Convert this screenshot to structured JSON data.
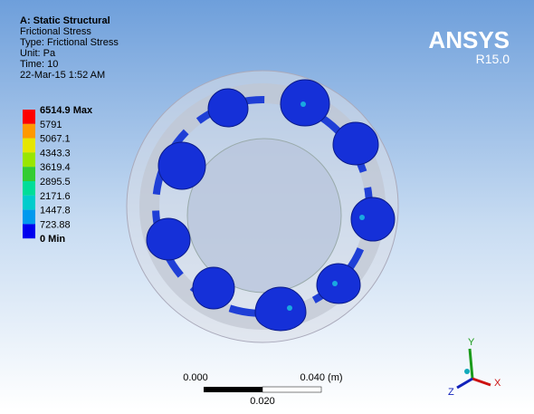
{
  "header": {
    "title": "A: Static Structural",
    "lines": [
      "Frictional Stress",
      "Type: Frictional Stress",
      "Unit: Pa",
      "Time: 10",
      "22-Mar-15 1:52 AM"
    ]
  },
  "legend": [
    {
      "label": "6514.9 Max",
      "color": "#ff0000"
    },
    {
      "label": "5791",
      "color": "#ff9900"
    },
    {
      "label": "5067.1",
      "color": "#e6e600"
    },
    {
      "label": "4343.3",
      "color": "#99e600"
    },
    {
      "label": "3619.4",
      "color": "#33cc33"
    },
    {
      "label": "2895.5",
      "color": "#00dd99"
    },
    {
      "label": "2171.6",
      "color": "#00cccc"
    },
    {
      "label": "1447.8",
      "color": "#0099ee"
    },
    {
      "label": "723.88",
      "color": "#0000ee"
    },
    {
      "label": "0 Min"
    }
  ],
  "logo": {
    "brand": "ANSYS",
    "version": "R15.0"
  },
  "scale_bar": {
    "left": "0.000",
    "right": "0.040 (m)",
    "middle": "0.020"
  },
  "triad": {
    "y": "Y",
    "x": "X",
    "z": "Z"
  }
}
